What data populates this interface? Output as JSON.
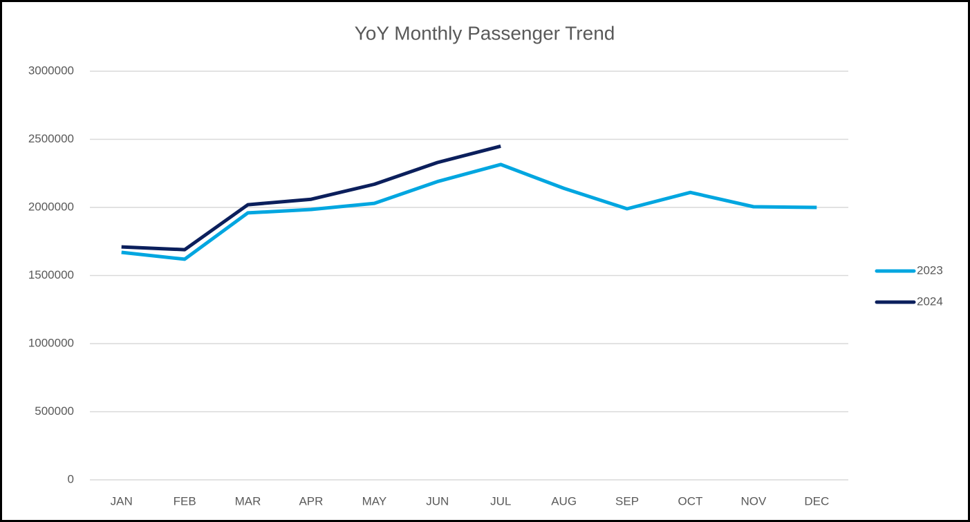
{
  "chart_data": {
    "type": "line",
    "title": "YoY Monthly Passenger Trend",
    "categories": [
      "JAN",
      "FEB",
      "MAR",
      "APR",
      "MAY",
      "JUN",
      "JUL",
      "AUG",
      "SEP",
      "OCT",
      "NOV",
      "DEC"
    ],
    "series": [
      {
        "name": "2023",
        "color": "#00a6e0",
        "values": [
          1670000,
          1620000,
          1960000,
          1985000,
          2030000,
          2190000,
          2315000,
          2140000,
          1990000,
          2110000,
          2005000,
          2000000
        ]
      },
      {
        "name": "2024",
        "color": "#0b1f5c",
        "values": [
          1710000,
          1690000,
          2020000,
          2060000,
          2170000,
          2330000,
          2450000,
          null,
          null,
          null,
          null,
          null
        ]
      }
    ],
    "ylim": [
      0,
      3000000
    ],
    "yticks": [
      0,
      500000,
      1000000,
      1500000,
      2000000,
      2500000,
      3000000
    ],
    "grid": true,
    "legend": "right"
  }
}
